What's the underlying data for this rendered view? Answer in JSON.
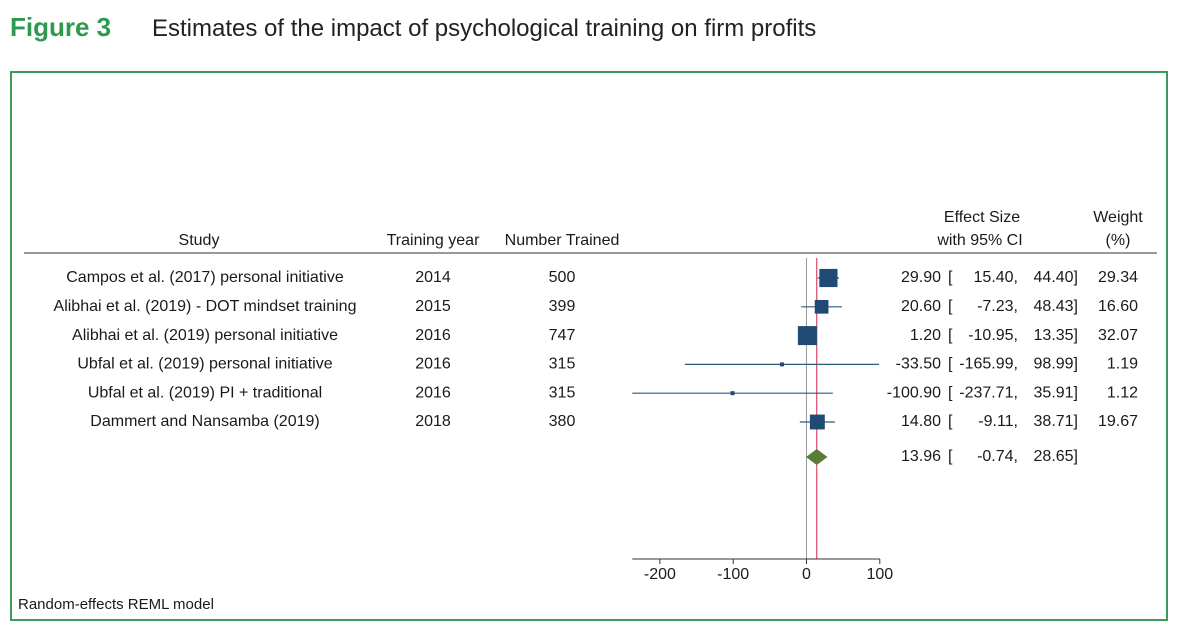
{
  "figure": {
    "label": "Figure 3",
    "title": "Estimates of the impact of psychological training on firm profits"
  },
  "colors": {
    "frame": "#3c9b5a",
    "figure_label": "#2e9a4f",
    "marker": "#1f4a73",
    "ci_line": "#2a5a80",
    "overall_diamond": "#5a7d36",
    "overall_line": "#d94a6a",
    "null_line": "#9a9a9a"
  },
  "chart_data": {
    "type": "forest",
    "headers": {
      "study": "Study",
      "year": "Training year",
      "trained": "Number Trained",
      "effect_line1": "Effect Size",
      "effect_line2": "with 95% CI",
      "weight_line1": "Weight",
      "weight_line2": "(%)"
    },
    "studies": [
      {
        "study": "Campos et al. (2017) personal initiative",
        "year": "2014",
        "trained": "500",
        "es": 29.9,
        "lo": 15.4,
        "hi": 44.4,
        "es_text": "29.90",
        "lo_text": "15.40,",
        "hi_text": "44.40]",
        "weight": 29.34,
        "weight_text": "29.34"
      },
      {
        "study": "Alibhai et al. (2019) - DOT mindset training",
        "year": "2015",
        "trained": "399",
        "es": 20.6,
        "lo": -7.23,
        "hi": 48.43,
        "es_text": "20.60",
        "lo_text": "-7.23,",
        "hi_text": "48.43]",
        "weight": 16.6,
        "weight_text": "16.60"
      },
      {
        "study": "Alibhai et al. (2019) personal initiative",
        "year": "2016",
        "trained": "747",
        "es": 1.2,
        "lo": -10.95,
        "hi": 13.35,
        "es_text": "1.20",
        "lo_text": "-10.95,",
        "hi_text": "13.35]",
        "weight": 32.07,
        "weight_text": "32.07"
      },
      {
        "study": "Ubfal et al. (2019) personal initiative",
        "year": "2016",
        "trained": "315",
        "es": -33.5,
        "lo": -165.99,
        "hi": 98.99,
        "es_text": "-33.50",
        "lo_text": "-165.99,",
        "hi_text": "98.99]",
        "weight": 1.19,
        "weight_text": "1.19"
      },
      {
        "study": "Ubfal et al. (2019) PI + traditional",
        "year": "2016",
        "trained": "315",
        "es": -100.9,
        "lo": -237.71,
        "hi": 35.91,
        "es_text": "-100.90",
        "lo_text": "-237.71,",
        "hi_text": "35.91]",
        "weight": 1.12,
        "weight_text": "1.12"
      },
      {
        "study": "Dammert and Nansamba (2019)",
        "year": "2018",
        "trained": "380",
        "es": 14.8,
        "lo": -9.11,
        "hi": 38.71,
        "es_text": "14.80",
        "lo_text": "-9.11,",
        "hi_text": "38.71]",
        "weight": 19.67,
        "weight_text": "19.67"
      }
    ],
    "overall": {
      "es": 13.96,
      "lo": -0.74,
      "hi": 28.65,
      "es_text": "13.96",
      "lo_text": "-0.74,",
      "hi_text": "28.65]"
    },
    "bracket_open": "[",
    "x_ticks": [
      -200,
      -100,
      0,
      100
    ],
    "x_tick_labels": [
      "-200",
      "-100",
      "0",
      "100"
    ],
    "xlim": [
      -237.71,
      100
    ],
    "note": "Random-effects REML model"
  }
}
